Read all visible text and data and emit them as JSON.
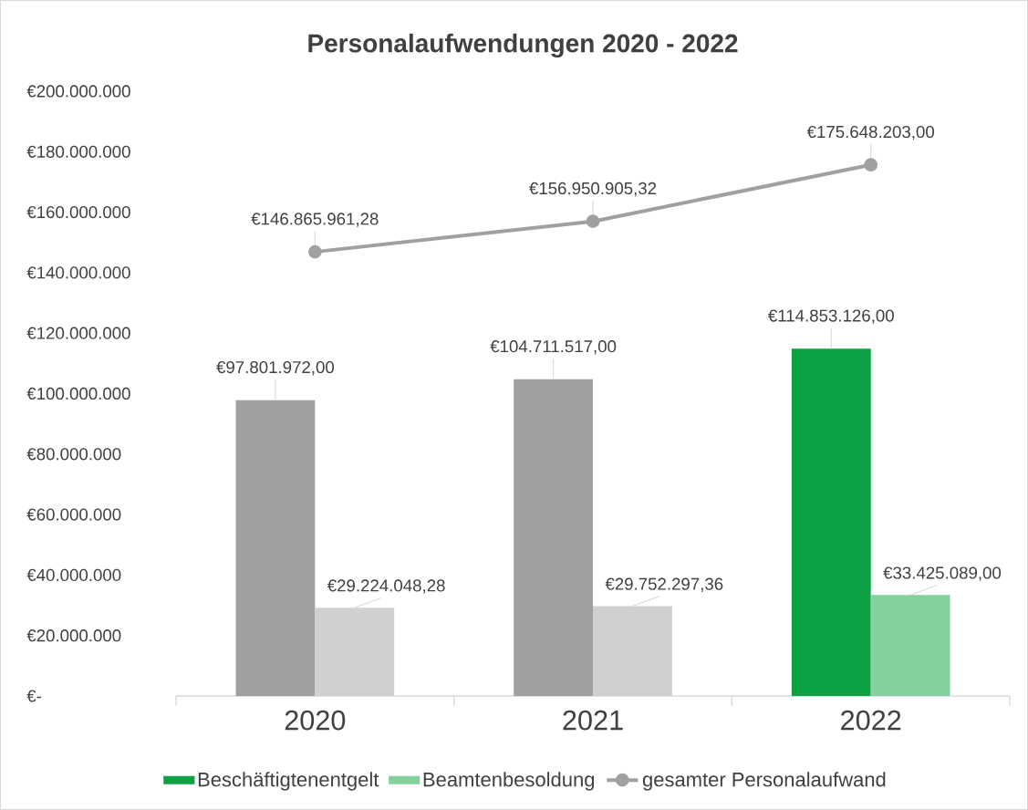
{
  "chart_data": {
    "type": "bar",
    "title": "Personalaufwendungen 2020 - 2022",
    "categories": [
      "2020",
      "2021",
      "2022"
    ],
    "series": [
      {
        "name": "Beschäftigtenentgelt",
        "color": "#0ca143",
        "colors": [
          "#a0a0a0",
          "#a0a0a0",
          "#0ca143"
        ],
        "values": [
          97801972.0,
          104711517.0,
          114853126.0
        ],
        "value_labels": [
          "€97.801.972,00",
          "€104.711.517,00",
          "€114.853.126,00"
        ]
      },
      {
        "name": "Beamtenbesoldung",
        "color": "#86d09e",
        "colors": [
          "#d0d0d0",
          "#d0d0d0",
          "#86d09e"
        ],
        "values": [
          29224048.28,
          29752297.36,
          33425089.0
        ],
        "value_labels": [
          "€29.224.048,28",
          "€29.752.297,36",
          "€33.425.089,00"
        ]
      },
      {
        "name": "gesamter Personalaufwand",
        "type": "line",
        "color": "#a0a0a0",
        "marker": "circle",
        "values": [
          146865961.28,
          156950905.32,
          175648203.0
        ],
        "value_labels": [
          "€146.865.961,28",
          "€156.950.905,32",
          "€175.648.203,00"
        ]
      }
    ],
    "ylim": [
      0,
      200000000
    ],
    "yticks": [
      {
        "value": 0,
        "label": "€-"
      },
      {
        "value": 20000000,
        "label": "€20.000.000"
      },
      {
        "value": 40000000,
        "label": "€40.000.000"
      },
      {
        "value": 60000000,
        "label": "€60.000.000"
      },
      {
        "value": 80000000,
        "label": "€80.000.000"
      },
      {
        "value": 100000000,
        "label": "€100.000.000"
      },
      {
        "value": 120000000,
        "label": "€120.000.000"
      },
      {
        "value": 140000000,
        "label": "€140.000.000"
      },
      {
        "value": 160000000,
        "label": "€160.000.000"
      },
      {
        "value": 180000000,
        "label": "€180.000.000"
      },
      {
        "value": 200000000,
        "label": "€200.000.000"
      }
    ],
    "grid": false,
    "legend": "bottom"
  }
}
